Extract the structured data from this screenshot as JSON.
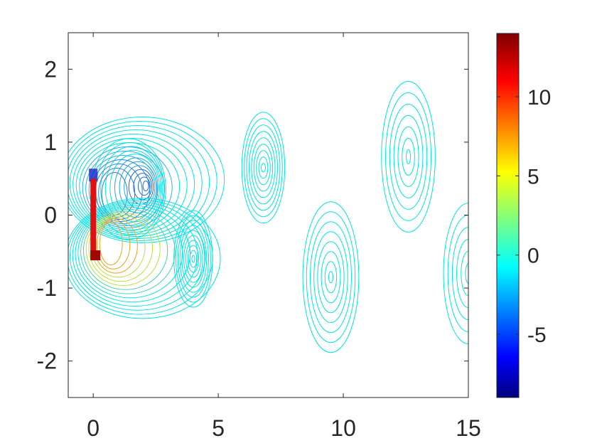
{
  "chart_data": {
    "type": "contour",
    "title": "",
    "xlabel": "",
    "ylabel": "",
    "xlim": [
      -1,
      15
    ],
    "ylim": [
      -2.5,
      2.5
    ],
    "x_ticks": [
      0,
      5,
      10,
      15
    ],
    "y_ticks": [
      -2,
      -1,
      0,
      1,
      2
    ],
    "x_tick_labels": [
      "0",
      "5",
      "10",
      "15"
    ],
    "y_tick_labels": [
      "-2",
      "-1",
      "0",
      "1",
      "2"
    ],
    "grid": false,
    "colormap": "jet",
    "colorbar": {
      "position": "right",
      "range": [
        -9,
        14
      ],
      "ticks": [
        -5,
        0,
        5,
        10
      ],
      "tick_labels": [
        "-5",
        "0",
        "5",
        "10"
      ]
    },
    "plate": {
      "x": 0,
      "y_range": [
        -0.6,
        0.5
      ]
    },
    "vortices": [
      {
        "x": 2.1,
        "y": 0.4,
        "sign": "negative"
      },
      {
        "x": 4.0,
        "y": -0.6,
        "sign": "positive"
      },
      {
        "x": 6.8,
        "y": 0.65,
        "sign": "negative"
      },
      {
        "x": 9.5,
        "y": -0.85,
        "sign": "positive"
      },
      {
        "x": 12.6,
        "y": 0.8,
        "sign": "negative"
      },
      {
        "x": 15.0,
        "y": -0.8,
        "sign": "positive"
      }
    ],
    "contour_level_color": "#00e5e5"
  }
}
